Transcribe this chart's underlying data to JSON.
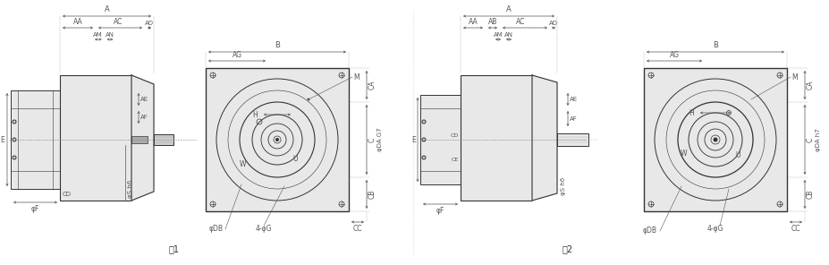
{
  "bg_color": "#ffffff",
  "line_color": "#333333",
  "dim_color": "#555555",
  "gray_fill": "#cccccc",
  "light_gray": "#e8e8e8",
  "mid_gray": "#aaaaaa",
  "fig1_label": "図1",
  "fig2_label": "図2",
  "dim_labels_fig1": {
    "A": "A",
    "AA": "AA",
    "AC": "AC",
    "AD": "AD",
    "AM": "AM",
    "AN": "AN",
    "AE": "AE",
    "AF": "AF",
    "B": "B",
    "AG": "AG",
    "M": "M",
    "H": "H",
    "W": "W",
    "U": "U",
    "DA_G7": "φDA G7",
    "CA": "CA",
    "C": "C",
    "CB": "CB",
    "CC": "CC",
    "DB": "φDB",
    "G": "4-φG",
    "E": "E",
    "CD": "CD",
    "F": "φF",
    "S": "φS h6"
  },
  "dim_labels_fig2": {
    "A": "A",
    "AA": "AA",
    "AB": "AB",
    "AC": "AC",
    "AD": "AD",
    "AM": "AM",
    "AN": "AN",
    "AE": "AE",
    "AF": "AF",
    "B": "B",
    "AG": "AG",
    "M": "M",
    "H": "H",
    "W": "W",
    "U": "U",
    "DA_h7": "φDA h7",
    "CA": "CA",
    "C": "C",
    "CB": "CB",
    "CC": "CC",
    "DB": "φDB",
    "G": "4-φG",
    "E": "E",
    "CE": "CE",
    "CD": "CD",
    "F": "φF",
    "S": "φS h6"
  }
}
